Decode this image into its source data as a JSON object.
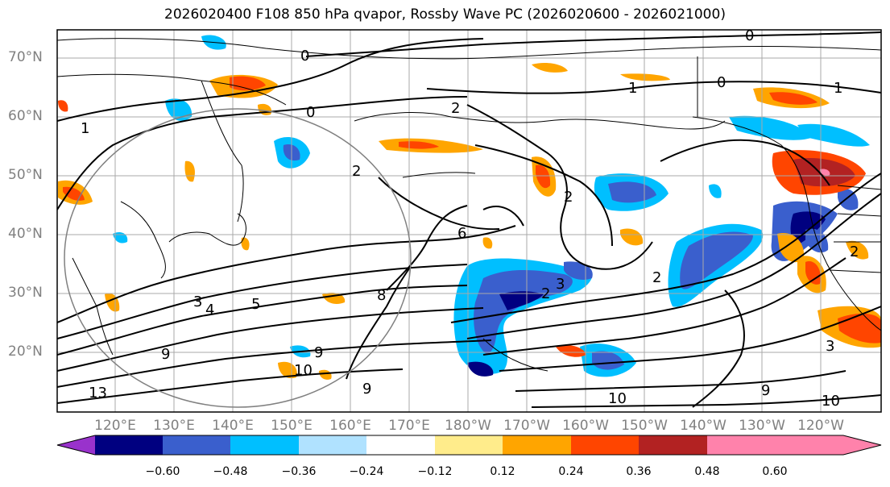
{
  "title": "2026020400 F108 850 hPa qvapor, Rossby Wave PC (2026020600 - 2026021000)",
  "lat_labels": [
    "70°N",
    "60°N",
    "50°N",
    "40°N",
    "30°N",
    "20°N"
  ],
  "lon_labels": [
    "120°E",
    "130°E",
    "140°E",
    "150°E",
    "160°E",
    "170°E",
    "180°W",
    "170°W",
    "160°W",
    "150°W",
    "140°W",
    "130°W",
    "120°W"
  ],
  "colorbar": {
    "colors": [
      "#9932CC",
      "#000080",
      "#3A5FCD",
      "#00BFFF",
      "#B0E2FF",
      "#FFFFFF",
      "#FFEC8B",
      "#FFA500",
      "#FF4500",
      "#B22222",
      "#FF82AB"
    ],
    "tick_labels": [
      "−0.60",
      "−0.48",
      "−0.36",
      "−0.24",
      "−0.12",
      "0.12",
      "0.24",
      "0.36",
      "0.48",
      "0.60"
    ]
  },
  "contour_labels": [
    "0",
    "0",
    "0",
    "0",
    "1",
    "1",
    "1",
    "2",
    "2",
    "2",
    "2",
    "2",
    "2",
    "3",
    "3",
    "3",
    "4",
    "5",
    "6",
    "8",
    "9",
    "9",
    "9",
    "9",
    "10",
    "10",
    "10",
    "13"
  ]
}
